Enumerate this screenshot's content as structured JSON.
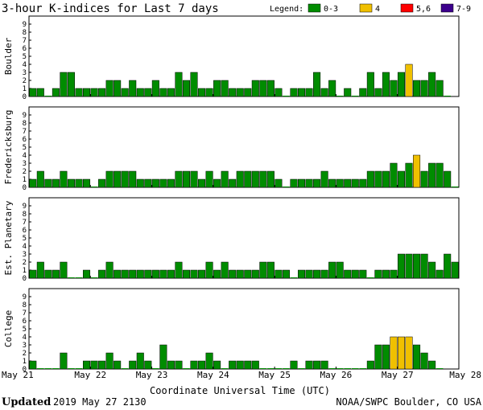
{
  "title": "3-hour K-indices for Last 7 days",
  "legend": {
    "label": "Legend:",
    "items": [
      {
        "label": "0-3",
        "color": "#008c00"
      },
      {
        "label": "4",
        "color": "#f0c000"
      },
      {
        "label": "5,6",
        "color": "#ff0000"
      },
      {
        "label": "7-9",
        "color": "#3c008c"
      }
    ]
  },
  "xlabel": "Coordinate Universal Time (UTC)",
  "footer": {
    "updated_label": "Updated",
    "updated_value": "2019 May 27 2130",
    "source": "NOAA/SWPC Boulder, CO USA"
  },
  "chart_data": {
    "type": "bar",
    "x_ticks": [
      "May 21",
      "May 22",
      "May 23",
      "May 24",
      "May 25",
      "May 26",
      "May 27",
      "May 28"
    ],
    "y_ticks": [
      "0",
      "1",
      "2",
      "3",
      "4",
      "5",
      "6",
      "7",
      "8",
      "9"
    ],
    "ylim": [
      0,
      9
    ],
    "bars_per_day": 8,
    "grid": false,
    "panels": [
      {
        "name": "Boulder",
        "values": [
          1,
          1,
          0,
          1,
          3,
          3,
          1,
          1,
          1,
          1,
          2,
          2,
          1,
          2,
          1,
          1,
          2,
          1,
          1,
          3,
          2,
          3,
          1,
          1,
          2,
          2,
          1,
          1,
          1,
          2,
          2,
          2,
          1,
          0,
          1,
          1,
          1,
          3,
          1,
          2,
          0,
          1,
          0,
          1,
          3,
          1,
          3,
          2,
          3,
          4,
          2,
          2,
          3,
          2,
          0
        ]
      },
      {
        "name": "Fredericksburg",
        "values": [
          1,
          2,
          1,
          1,
          2,
          1,
          1,
          1,
          0,
          1,
          2,
          2,
          2,
          2,
          1,
          1,
          1,
          1,
          1,
          2,
          2,
          2,
          1,
          2,
          1,
          2,
          1,
          2,
          2,
          2,
          2,
          2,
          1,
          0,
          1,
          1,
          1,
          1,
          2,
          1,
          1,
          1,
          1,
          1,
          2,
          2,
          2,
          3,
          2,
          3,
          4,
          2,
          3,
          3,
          2,
          0
        ]
      },
      {
        "name": "Est. Planetary",
        "values": [
          1,
          2,
          1,
          1,
          2,
          0,
          0,
          1,
          0,
          1,
          2,
          1,
          1,
          1,
          1,
          1,
          1,
          1,
          1,
          2,
          1,
          1,
          1,
          2,
          1,
          2,
          1,
          1,
          1,
          1,
          2,
          2,
          1,
          1,
          0,
          1,
          1,
          1,
          1,
          2,
          2,
          1,
          1,
          1,
          0,
          1,
          1,
          1,
          3,
          3,
          3,
          3,
          2,
          1,
          3,
          2
        ]
      },
      {
        "name": "College",
        "values": [
          1,
          0,
          0,
          0,
          2,
          0,
          0,
          1,
          1,
          1,
          2,
          1,
          0,
          1,
          2,
          1,
          0,
          3,
          1,
          1,
          0,
          1,
          1,
          2,
          1,
          0,
          1,
          1,
          1,
          1,
          0,
          0,
          0,
          0,
          1,
          0,
          1,
          1,
          1,
          0,
          0,
          0,
          0,
          0,
          1,
          3,
          3,
          4,
          4,
          4,
          3,
          2,
          1,
          0
        ]
      }
    ]
  }
}
